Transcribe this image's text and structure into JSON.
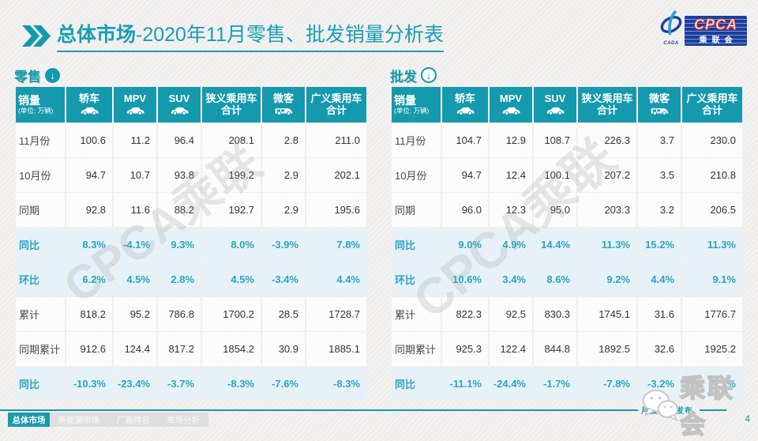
{
  "header": {
    "title_primary": "总体市场",
    "title_secondary": "-2020年11月零售、批发销量分析表",
    "logo": {
      "acronym": "CPCA",
      "name": "乘联会",
      "mark": "CADA"
    }
  },
  "columns": {
    "first": {
      "title": "销量",
      "unit": "(单位: 万辆)"
    },
    "list": [
      {
        "label": "轿车",
        "icon": "car-icon"
      },
      {
        "label": "MPV",
        "icon": "car-icon"
      },
      {
        "label": "SUV",
        "icon": "car-icon"
      },
      {
        "label": "狭义乘用车",
        "label2": "合计"
      },
      {
        "label": "微客",
        "icon": "van-icon"
      },
      {
        "label": "广义乘用车",
        "label2": "合计"
      }
    ]
  },
  "tables": [
    {
      "title": "零售",
      "rows": [
        {
          "label": "11月份",
          "highlight": false,
          "values": [
            "100.6",
            "11.2",
            "96.4",
            "208.1",
            "2.8",
            "211.0"
          ]
        },
        {
          "label": "10月份",
          "highlight": false,
          "values": [
            "94.7",
            "10.7",
            "93.8",
            "199.2",
            "2.9",
            "202.1"
          ]
        },
        {
          "label": "同期",
          "highlight": false,
          "values": [
            "92.8",
            "11.6",
            "88.2",
            "192.7",
            "2.9",
            "195.6"
          ]
        },
        {
          "label": "同比",
          "highlight": true,
          "values": [
            "8.3%",
            "-4.1%",
            "9.3%",
            "8.0%",
            "-3.9%",
            "7.8%"
          ]
        },
        {
          "label": "环比",
          "highlight": true,
          "values": [
            "6.2%",
            "4.5%",
            "2.8%",
            "4.5%",
            "-3.4%",
            "4.4%"
          ]
        },
        {
          "label": "累计",
          "highlight": false,
          "values": [
            "818.2",
            "95.2",
            "786.8",
            "1700.2",
            "28.5",
            "1728.7"
          ]
        },
        {
          "label": "同期累计",
          "highlight": false,
          "values": [
            "912.6",
            "124.4",
            "817.2",
            "1854.2",
            "30.9",
            "1885.1"
          ]
        },
        {
          "label": "同比",
          "highlight": true,
          "values": [
            "-10.3%",
            "-23.4%",
            "-3.7%",
            "-8.3%",
            "-7.6%",
            "-8.3%"
          ]
        }
      ]
    },
    {
      "title": "批发",
      "rows": [
        {
          "label": "11月份",
          "highlight": false,
          "values": [
            "104.7",
            "12.9",
            "108.7",
            "226.3",
            "3.7",
            "230.0"
          ]
        },
        {
          "label": "10月份",
          "highlight": false,
          "values": [
            "94.7",
            "12.4",
            "100.1",
            "207.2",
            "3.5",
            "210.8"
          ]
        },
        {
          "label": "同期",
          "highlight": false,
          "values": [
            "96.0",
            "12.3",
            "95.0",
            "203.3",
            "3.2",
            "206.5"
          ]
        },
        {
          "label": "同比",
          "highlight": true,
          "values": [
            "9.0%",
            "4.9%",
            "14.4%",
            "11.3%",
            "15.2%",
            "11.3%"
          ]
        },
        {
          "label": "环比",
          "highlight": true,
          "values": [
            "10.6%",
            "3.4%",
            "8.6%",
            "9.2%",
            "4.4%",
            "9.1%"
          ]
        },
        {
          "label": "累计",
          "highlight": false,
          "values": [
            "822.3",
            "92.5",
            "830.3",
            "1745.1",
            "31.6",
            "1776.7"
          ]
        },
        {
          "label": "同期累计",
          "highlight": false,
          "values": [
            "925.3",
            "122.4",
            "844.8",
            "1892.5",
            "32.6",
            "1925.2"
          ]
        },
        {
          "label": "同比",
          "highlight": true,
          "values": [
            "-11.1%",
            "-24.4%",
            "-1.7%",
            "-7.8%",
            "-3.2%",
            "-7.7%"
          ]
        }
      ]
    }
  ],
  "watermarks": {
    "diagonal": "CPCA乘联",
    "wechat_text": "乘联会"
  },
  "footer": {
    "note": "月度信息发布",
    "page_number": "4",
    "tabs": [
      {
        "label": "总体市场",
        "active": true
      },
      {
        "label": "新能源市场",
        "active": false
      },
      {
        "label": "厂商排名",
        "active": false
      },
      {
        "label": "市场分析",
        "active": false
      }
    ]
  }
}
